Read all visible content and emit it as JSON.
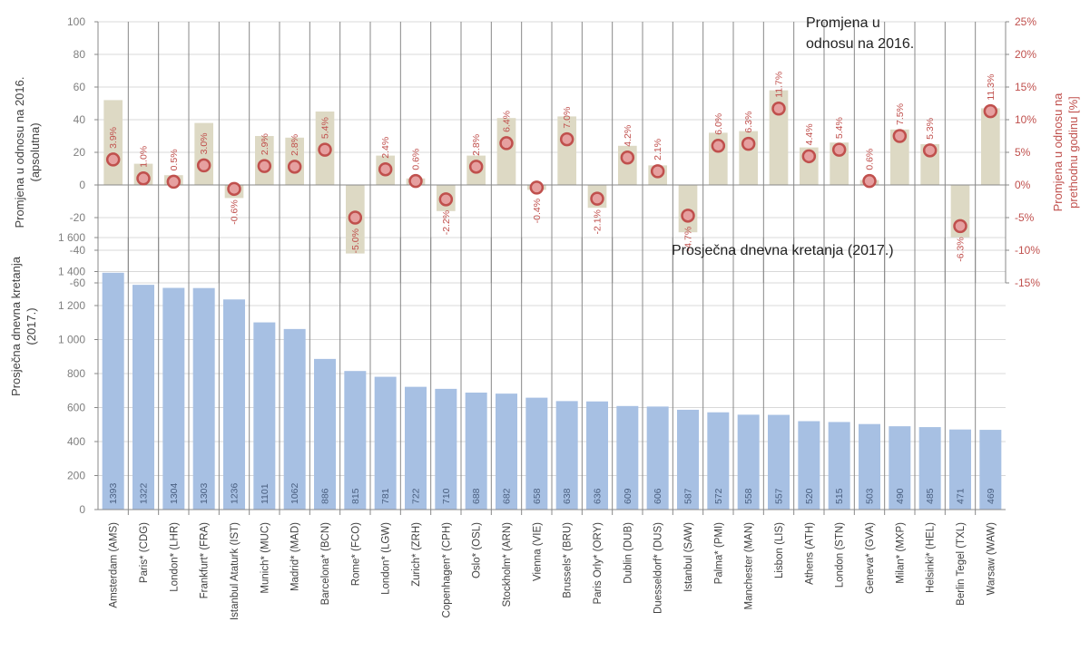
{
  "chart_data": [
    {
      "type": "bar",
      "title": "Promjena u\nodnosu na 2016.",
      "ylabel": "Promjena u odnosu na 2016.\n(apsolutna)",
      "y2label": "Promjena u odnosu na\nprethodnu godinu [%]",
      "ylim": [
        -60,
        100
      ],
      "y2lim": [
        -15,
        25
      ],
      "yticks": [
        "100",
        "80",
        "60",
        "40",
        "20",
        "0",
        "-20",
        "-40",
        "-60"
      ],
      "y2ticks": [
        "25%",
        "20%",
        "15%",
        "10%",
        "5%",
        "0%",
        "-5%",
        "-10%",
        "-15%"
      ],
      "colors": {
        "bar": "#ddd9c4",
        "marker_fill": "#e6a0a0",
        "marker_stroke": "#c0504d",
        "label": "#c0504d"
      },
      "categories": [
        "Amsterdam (AMS)",
        "Paris* (CDG)",
        "London* (LHR)",
        "Frankfurt* (FRA)",
        "Istanbul Ataturk (IST)",
        "Munich* (MUC)",
        "Madrid* (MAD)",
        "Barcelona* (BCN)",
        "Rome* (FCO)",
        "London* (LGW)",
        "Zurich* (ZRH)",
        "Copenhagen* (CPH)",
        "Oslo* (OSL)",
        "Stockholm* (ARN)",
        "Vienna (VIE)",
        "Brussels* (BRU)",
        "Paris Orly* (ORY)",
        "Dublin (DUB)",
        "Duesseldorf* (DUS)",
        "Istanbul (SAW)",
        "Palma* (PMI)",
        "Manchester (MAN)",
        "Lisbon (LIS)",
        "Athens (ATH)",
        "London (STN)",
        "Geneva* (GVA)",
        "Milan* (MXP)",
        "Helsinki* (HEL)",
        "Berlin Tegel (TXL)",
        "Warsaw (WAW)"
      ],
      "series": [
        {
          "values": [
            52,
            13,
            6,
            38,
            -8,
            30,
            29,
            45,
            -42,
            18,
            4,
            -16,
            18,
            41,
            -3,
            42,
            -14,
            24,
            12,
            -29,
            32,
            33,
            58,
            23,
            26,
            3,
            34,
            25,
            -32,
            47
          ]
        },
        {
          "values": [
            3.9,
            1.0,
            0.5,
            3.0,
            -0.6,
            2.9,
            2.8,
            5.4,
            -5.0,
            2.4,
            0.6,
            -2.2,
            2.8,
            6.4,
            -0.4,
            7.0,
            -2.1,
            4.2,
            2.1,
            -4.7,
            6.0,
            6.3,
            11.7,
            4.4,
            5.4,
            0.6,
            7.5,
            5.3,
            -6.3,
            11.3
          ],
          "labels": [
            "3.9%",
            "1.0%",
            "0.5%",
            "3.0%",
            "-0.6%",
            "2.9%",
            "2.8%",
            "5.4%",
            "-5.0%",
            "2.4%",
            "0.6%",
            "-2.2%",
            "2.8%",
            "6.4%",
            "-0.4%",
            "7.0%",
            "-2.1%",
            "4.2%",
            "2.1%",
            "-4.7%",
            "6.0%",
            "6.3%",
            "11.7%",
            "4.4%",
            "5.4%",
            "0.6%",
            "7.5%",
            "5.3%",
            "-6.3%",
            "11.3%"
          ]
        }
      ]
    },
    {
      "type": "bar",
      "title": "Prosječna dnevna kretanja (2017.)",
      "ylabel": "Prosječna dnevna kretanja\n(2017.)",
      "ylim": [
        0,
        1600
      ],
      "yticks": [
        "1 600",
        "1 400",
        "1 200",
        "1 000",
        "800",
        "600",
        "400",
        "200",
        "0"
      ],
      "colors": {
        "bar": "#a7c0e3",
        "label": "#4a5f80"
      },
      "categories": [
        "Amsterdam (AMS)",
        "Paris* (CDG)",
        "London* (LHR)",
        "Frankfurt* (FRA)",
        "Istanbul Ataturk (IST)",
        "Munich* (MUC)",
        "Madrid* (MAD)",
        "Barcelona* (BCN)",
        "Rome* (FCO)",
        "London* (LGW)",
        "Zurich* (ZRH)",
        "Copenhagen* (CPH)",
        "Oslo* (OSL)",
        "Stockholm* (ARN)",
        "Vienna (VIE)",
        "Brussels* (BRU)",
        "Paris Orly* (ORY)",
        "Dublin (DUB)",
        "Duesseldorf* (DUS)",
        "Istanbul (SAW)",
        "Palma* (PMI)",
        "Manchester (MAN)",
        "Lisbon (LIS)",
        "Athens (ATH)",
        "London (STN)",
        "Geneva* (GVA)",
        "Milan* (MXP)",
        "Helsinki* (HEL)",
        "Berlin Tegel (TXL)",
        "Warsaw (WAW)"
      ],
      "values": [
        1393,
        1322,
        1304,
        1303,
        1236,
        1101,
        1062,
        886,
        815,
        781,
        722,
        710,
        688,
        682,
        658,
        638,
        636,
        609,
        606,
        587,
        572,
        558,
        557,
        520,
        515,
        503,
        490,
        485,
        471,
        469
      ],
      "labels": [
        "1393",
        "1322",
        "1304",
        "1303",
        "1236",
        "1101",
        "1062",
        "886",
        "815",
        "781",
        "722",
        "710",
        "688",
        "682",
        "658",
        "638",
        "636",
        "609",
        "606",
        "587",
        "572",
        "558",
        "557",
        "520",
        "515",
        "503",
        "490",
        "485",
        "471",
        "469"
      ]
    }
  ]
}
